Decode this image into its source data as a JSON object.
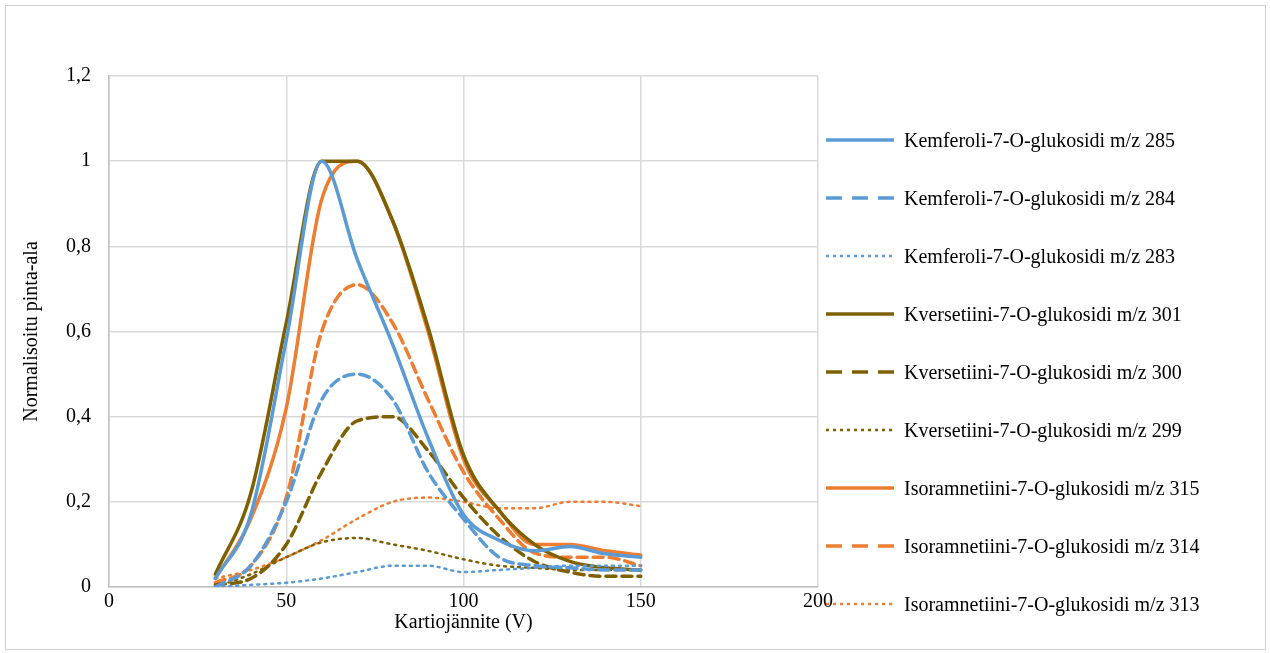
{
  "chart_data": {
    "type": "line",
    "xlabel": "Kartiojännite (V)",
    "ylabel": "Normalisoitu pinta-ala",
    "x": [
      30,
      40,
      50,
      60,
      70,
      80,
      90,
      100,
      110,
      120,
      130,
      140,
      150
    ],
    "series": [
      {
        "name": "Kemferoli-7-O-glukosidi m/z 285",
        "color": "#5b9bd5",
        "line_style": "solid",
        "values": [
          0.02,
          0.17,
          0.58,
          1.0,
          0.77,
          0.57,
          0.35,
          0.17,
          0.11,
          0.085,
          0.095,
          0.078,
          0.07
        ]
      },
      {
        "name": "Kemferoli-7-O-glukosidi m/z 284",
        "color": "#5b9bd5",
        "line_style": "dashed",
        "values": [
          0,
          0.05,
          0.2,
          0.44,
          0.5,
          0.44,
          0.27,
          0.16,
          0.07,
          0.05,
          0.045,
          0.04,
          0.04
        ]
      },
      {
        "name": "Kemferoli-7-O-glukosidi m/z 283",
        "color": "#5b9bd5",
        "line_style": "dotted",
        "values": [
          0,
          0.005,
          0.01,
          0.02,
          0.035,
          0.05,
          0.05,
          0.035,
          0.04,
          0.045,
          0.05,
          0.05,
          0.05
        ]
      },
      {
        "name": "Kversetiini-7-O-glukosidi m/z 301",
        "color": "#7f6000",
        "line_style": "solid",
        "values": [
          0.03,
          0.22,
          0.62,
          1.0,
          1.0,
          0.86,
          0.61,
          0.31,
          0.18,
          0.1,
          0.06,
          0.045,
          0.04
        ]
      },
      {
        "name": "Kversetiini-7-O-glukosidi m/z 300",
        "color": "#7f6000",
        "line_style": "dashed",
        "values": [
          0.005,
          0.02,
          0.1,
          0.27,
          0.39,
          0.4,
          0.32,
          0.21,
          0.12,
          0.06,
          0.035,
          0.025,
          0.025
        ]
      },
      {
        "name": "Kversetiini-7-O-glukosidi m/z 299",
        "color": "#7f6000",
        "line_style": "dotted",
        "values": [
          0,
          0.03,
          0.07,
          0.105,
          0.115,
          0.1,
          0.085,
          0.065,
          0.05,
          0.045,
          0.04,
          0.04,
          0.04
        ]
      },
      {
        "name": "Isoramnetiini-7-O-glukosidi m/z 315",
        "color": "#ed7d31",
        "line_style": "solid",
        "values": [
          0.02,
          0.16,
          0.42,
          0.91,
          1.0,
          0.86,
          0.6,
          0.3,
          0.18,
          0.1,
          0.1,
          0.085,
          0.075
        ]
      },
      {
        "name": "Isoramnetiini-7-O-glukosidi m/z 314",
        "color": "#ed7d31",
        "line_style": "dashed",
        "values": [
          0.01,
          0.05,
          0.21,
          0.6,
          0.71,
          0.62,
          0.44,
          0.27,
          0.16,
          0.08,
          0.07,
          0.07,
          0.05
        ]
      },
      {
        "name": "Isoramnetiini-7-O-glukosidi m/z 313",
        "color": "#ed7d31",
        "line_style": "dotted",
        "values": [
          0.02,
          0.04,
          0.07,
          0.11,
          0.16,
          0.2,
          0.21,
          0.2,
          0.185,
          0.185,
          0.2,
          0.2,
          0.19
        ]
      }
    ],
    "xlim": [
      0,
      200
    ],
    "xticks": [
      0,
      50,
      100,
      150,
      200
    ],
    "ylim": [
      0,
      1.2
    ],
    "yticks": [
      0,
      {
        "value": 0.2,
        "label": "0,2"
      },
      {
        "value": 0.4,
        "label": "0,4"
      },
      {
        "value": 0.6,
        "label": "0,6"
      },
      {
        "value": 0.8,
        "label": "0,8"
      },
      1,
      {
        "value": 1.2,
        "label": "1,2"
      }
    ],
    "grid": true,
    "legend": "right",
    "marker": "none"
  }
}
